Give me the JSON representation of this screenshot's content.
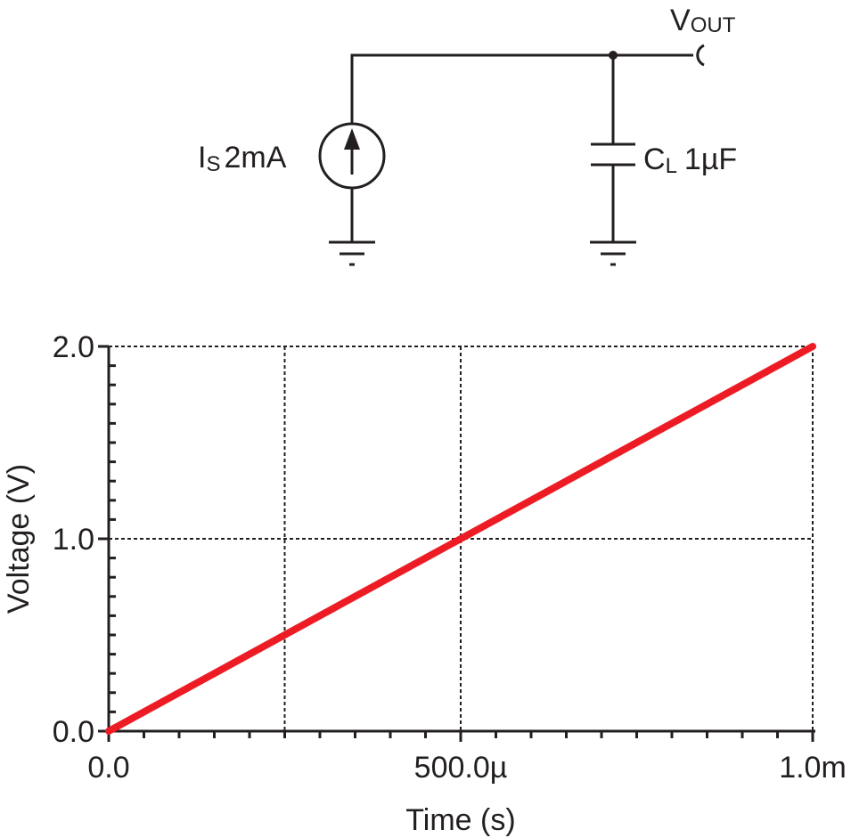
{
  "circuit": {
    "source_label": "I",
    "source_sub": "S",
    "source_value": "2mA",
    "cap_label": "C",
    "cap_sub": "L",
    "cap_value": "1µF",
    "output_label": "V",
    "output_sub": "OUT"
  },
  "chart_data": {
    "type": "line",
    "xlabel": "Time (s)",
    "ylabel": "Voltage (V)",
    "xlim": [
      0,
      0.001
    ],
    "ylim": [
      0,
      2.0
    ],
    "x_ticks": [
      {
        "v": 0,
        "label": "0.0"
      },
      {
        "v": 0.0005,
        "label": "500.0µ"
      },
      {
        "v": 0.001,
        "label": "1.0m"
      }
    ],
    "y_ticks": [
      {
        "v": 0,
        "label": "0.0"
      },
      {
        "v": 1.0,
        "label": "1.0"
      },
      {
        "v": 2.0,
        "label": "2.0"
      }
    ],
    "x_grid": [
      0.00025,
      0.0005,
      0.001
    ],
    "y_grid": [
      1.0,
      2.0
    ],
    "grid": true,
    "series": [
      {
        "color": "#ed1c24",
        "x": [
          0,
          0.001
        ],
        "y": [
          0,
          2.0
        ]
      }
    ]
  }
}
